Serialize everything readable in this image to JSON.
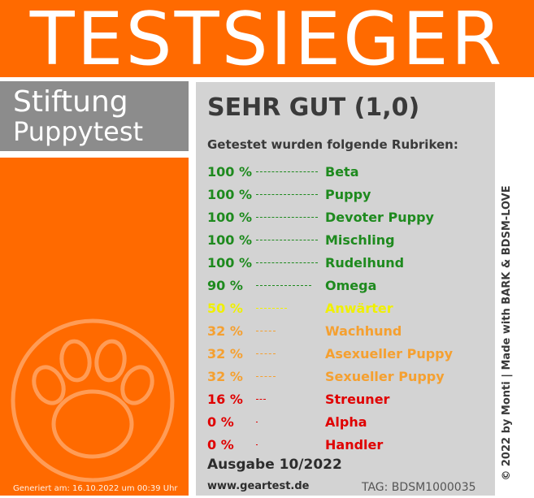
{
  "banner": {
    "title": "TESTSIEGER"
  },
  "organization": {
    "line1": "Stiftung",
    "line2": "Puppytest"
  },
  "logo": {
    "icon": "paw-icon"
  },
  "generated": "Generiert am: 16.10.2022 um 00:39 Uhr",
  "result": {
    "grade": "SEHR GUT (1,0)",
    "intro": "Getestet wurden folgende Rubriken:",
    "items": [
      {
        "percent": "100 %",
        "value": 100,
        "label": "Beta",
        "color": "#1e8a1e"
      },
      {
        "percent": "100 %",
        "value": 100,
        "label": "Puppy",
        "color": "#1e8a1e"
      },
      {
        "percent": "100 %",
        "value": 100,
        "label": "Devoter Puppy",
        "color": "#1e8a1e"
      },
      {
        "percent": "100 %",
        "value": 100,
        "label": "Mischling",
        "color": "#1e8a1e"
      },
      {
        "percent": "100 %",
        "value": 100,
        "label": "Rudelhund",
        "color": "#1e8a1e"
      },
      {
        "percent": "90 %",
        "value": 90,
        "label": "Omega",
        "color": "#1e8a1e"
      },
      {
        "percent": "50 %",
        "value": 50,
        "label": "Anwärter",
        "color": "#f0f000"
      },
      {
        "percent": "32 %",
        "value": 32,
        "label": "Wachhund",
        "color": "#f5a030"
      },
      {
        "percent": "32 %",
        "value": 32,
        "label": "Asexueller Puppy",
        "color": "#f5a030"
      },
      {
        "percent": "32 %",
        "value": 32,
        "label": "Sexueller Puppy",
        "color": "#f5a030"
      },
      {
        "percent": "16 %",
        "value": 16,
        "label": "Streuner",
        "color": "#e00000"
      },
      {
        "percent": "0 %",
        "value": 0,
        "label": "Alpha",
        "color": "#e00000"
      },
      {
        "percent": "0 %",
        "value": 0,
        "label": "Handler",
        "color": "#e00000"
      }
    ]
  },
  "footer": {
    "issue": "Ausgabe 10/2022",
    "website": "www.geartest.de",
    "tag": "TAG: BDSM1000035"
  },
  "credit": "© 2022 by Monti | Made with BARK & BDSM-LOVE",
  "colors": {
    "accent": "#ff6a00",
    "panel": "#d3d3d3",
    "org_box": "#8c8c8c"
  }
}
